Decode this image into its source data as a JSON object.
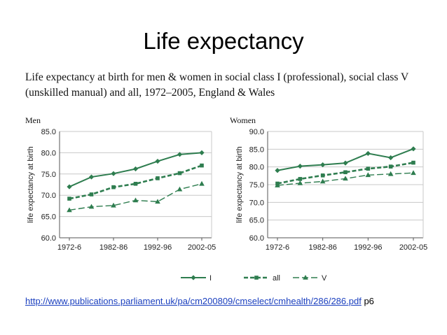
{
  "slide": {
    "title": "Life expectancy",
    "caption": "Life expectancy at birth for men & women in social class I (professional), social class V (unskilled manual) and all, 1972–2005, England & Wales",
    "source_url": "http://www.publications.parliament.uk/pa/cm200809/cmselect/cmhealth/286/286.pdf",
    "source_suffix": " p6"
  },
  "colors": {
    "series": "#2e7d4f",
    "grid": "#c8c8c8",
    "axis": "#555555"
  },
  "chart_data": [
    {
      "type": "line",
      "title": "Men",
      "ylabel": "life expectancy at birth",
      "xlabel": "",
      "x": [
        "1972-6",
        "1977-81",
        "1982-86",
        "1987-91",
        "1992-96",
        "1997-01",
        "2002-05"
      ],
      "tick_labels": [
        "1972-6",
        "1982-86",
        "1992-96",
        "2002-05"
      ],
      "ylim": [
        60.0,
        85.0
      ],
      "yticks": [
        "60.0",
        "65.0",
        "70.0",
        "75.0",
        "80.0",
        "85.0"
      ],
      "grid": true,
      "series": [
        {
          "name": "I",
          "values": [
            72.0,
            74.3,
            75.1,
            76.2,
            78.0,
            79.6,
            80.0
          ]
        },
        {
          "name": "all",
          "values": [
            69.2,
            70.2,
            71.9,
            72.7,
            74.0,
            75.2,
            77.0
          ]
        },
        {
          "name": "V",
          "values": [
            66.5,
            67.3,
            67.6,
            68.8,
            68.5,
            71.4,
            72.7
          ]
        }
      ]
    },
    {
      "type": "line",
      "title": "Women",
      "ylabel": "life expectancy at birth",
      "xlabel": "",
      "x": [
        "1972-6",
        "1977-81",
        "1982-86",
        "1987-91",
        "1992-96",
        "1997-01",
        "2002-05"
      ],
      "tick_labels": [
        "1972-6",
        "1982-86",
        "1992-96",
        "2002-05"
      ],
      "ylim": [
        60.0,
        90.0
      ],
      "yticks": [
        "60.0",
        "65.0",
        "70.0",
        "75.0",
        "80.0",
        "85.0",
        "90.0"
      ],
      "grid": true,
      "series": [
        {
          "name": "I",
          "values": [
            79.0,
            80.2,
            80.6,
            81.1,
            83.8,
            82.6,
            85.1
          ]
        },
        {
          "name": "all",
          "values": [
            75.3,
            76.6,
            77.6,
            78.5,
            79.5,
            80.1,
            81.2
          ]
        },
        {
          "name": "V",
          "values": [
            74.8,
            75.4,
            75.9,
            76.7,
            77.7,
            78.0,
            78.3
          ]
        }
      ]
    }
  ],
  "legend": {
    "placement": "bottom",
    "items": [
      {
        "label": "I",
        "marker": "diamond",
        "dash": "solid"
      },
      {
        "label": "all",
        "marker": "square",
        "dash": "dashed"
      },
      {
        "label": "V",
        "marker": "triangle",
        "dash": "long-dash"
      }
    ]
  }
}
